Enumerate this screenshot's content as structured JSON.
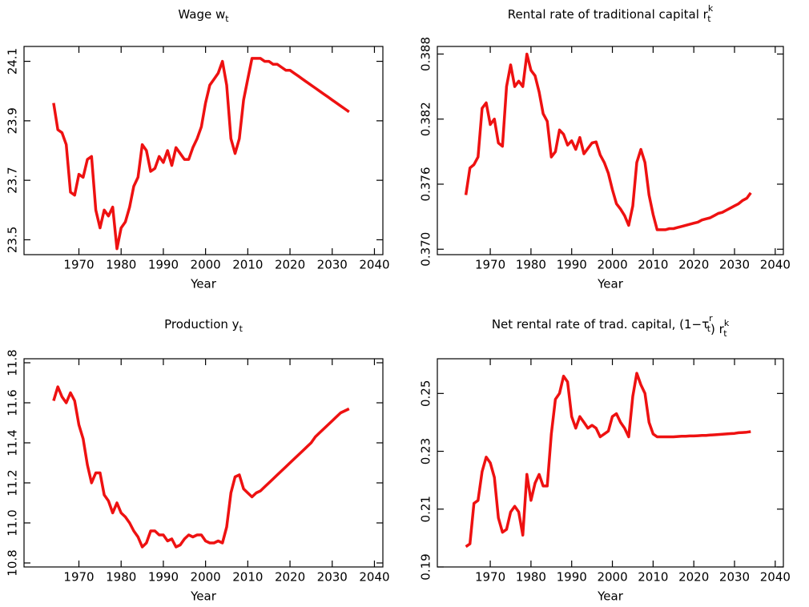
{
  "chart_data": [
    {
      "type": "line",
      "title": [
        {
          "text": "Wage w"
        },
        {
          "sub": "t"
        }
      ],
      "xlabel": "Year",
      "x": [
        1964,
        1965,
        1966,
        1967,
        1968,
        1969,
        1970,
        1971,
        1972,
        1973,
        1974,
        1975,
        1976,
        1977,
        1978,
        1979,
        1980,
        1981,
        1982,
        1983,
        1984,
        1985,
        1986,
        1987,
        1988,
        1989,
        1990,
        1991,
        1992,
        1993,
        1994,
        1995,
        1996,
        1997,
        1998,
        1999,
        2000,
        2001,
        2002,
        2003,
        2004,
        2005,
        2006,
        2007,
        2008,
        2009,
        2010,
        2011,
        2012,
        2013,
        2014,
        2015,
        2016,
        2017,
        2018,
        2019,
        2020,
        2021,
        2022,
        2023,
        2024,
        2025,
        2026,
        2027,
        2028,
        2029,
        2030,
        2031,
        2032,
        2033,
        2034
      ],
      "values": [
        23.96,
        23.87,
        23.86,
        23.82,
        23.66,
        23.65,
        23.72,
        23.71,
        23.77,
        23.78,
        23.6,
        23.54,
        23.6,
        23.58,
        23.61,
        23.47,
        23.54,
        23.56,
        23.61,
        23.68,
        23.71,
        23.82,
        23.8,
        23.73,
        23.74,
        23.78,
        23.76,
        23.8,
        23.75,
        23.81,
        23.79,
        23.77,
        23.77,
        23.81,
        23.84,
        23.88,
        23.96,
        24.02,
        24.04,
        24.06,
        24.1,
        24.02,
        23.84,
        23.79,
        23.84,
        23.97,
        24.04,
        24.11,
        24.11,
        24.11,
        24.1,
        24.1,
        24.09,
        24.09,
        24.08,
        24.07,
        24.07,
        24.06,
        24.05,
        24.04,
        24.03,
        24.02,
        24.01,
        24.0,
        23.99,
        23.98,
        23.97,
        23.96,
        23.95,
        23.94,
        23.93
      ],
      "color": "#ee1111",
      "xlim": [
        1957,
        2042
      ],
      "xticks": [
        1970,
        1980,
        1990,
        2000,
        2010,
        2020,
        2030,
        2040
      ],
      "ylim": [
        23.45,
        24.15
      ],
      "yticks": [
        23.5,
        23.7,
        23.9,
        24.1
      ]
    },
    {
      "type": "line",
      "title": [
        {
          "text": "Rental rate of traditional capital r"
        },
        {
          "sub": "t",
          "sup": "k"
        }
      ],
      "xlabel": "Year",
      "x": [
        1964,
        1965,
        1966,
        1967,
        1968,
        1969,
        1970,
        1971,
        1972,
        1973,
        1974,
        1975,
        1976,
        1977,
        1978,
        1979,
        1980,
        1981,
        1982,
        1983,
        1984,
        1985,
        1986,
        1987,
        1988,
        1989,
        1990,
        1991,
        1992,
        1993,
        1994,
        1995,
        1996,
        1997,
        1998,
        1999,
        2000,
        2001,
        2002,
        2003,
        2004,
        2005,
        2006,
        2007,
        2008,
        2009,
        2010,
        2011,
        2012,
        2013,
        2014,
        2015,
        2016,
        2017,
        2018,
        2019,
        2020,
        2021,
        2022,
        2023,
        2024,
        2025,
        2026,
        2027,
        2028,
        2029,
        2030,
        2031,
        2032,
        2033,
        2034
      ],
      "values": [
        0.375,
        0.3775,
        0.3778,
        0.3785,
        0.383,
        0.3835,
        0.3815,
        0.382,
        0.3798,
        0.3795,
        0.385,
        0.387,
        0.385,
        0.3855,
        0.385,
        0.388,
        0.3865,
        0.386,
        0.3845,
        0.3825,
        0.3818,
        0.3785,
        0.379,
        0.381,
        0.3806,
        0.3796,
        0.38,
        0.3792,
        0.3803,
        0.3788,
        0.3793,
        0.3798,
        0.3799,
        0.3787,
        0.378,
        0.377,
        0.3755,
        0.3742,
        0.3737,
        0.3731,
        0.3722,
        0.374,
        0.378,
        0.3792,
        0.378,
        0.375,
        0.3732,
        0.3718,
        0.3718,
        0.3718,
        0.3719,
        0.3719,
        0.372,
        0.3721,
        0.3722,
        0.3723,
        0.3724,
        0.3725,
        0.3727,
        0.3728,
        0.3729,
        0.3731,
        0.3733,
        0.3734,
        0.3736,
        0.3738,
        0.374,
        0.3742,
        0.3745,
        0.3747,
        0.3752
      ],
      "color": "#ee1111",
      "xlim": [
        1957,
        2042
      ],
      "xticks": [
        1970,
        1980,
        1990,
        2000,
        2010,
        2020,
        2030,
        2040
      ],
      "ylim": [
        0.3695,
        0.3887
      ],
      "yticks": [
        {
          "value": 0.37,
          "label": "0.370"
        },
        0.376,
        0.382,
        0.388
      ]
    },
    {
      "type": "line",
      "title": [
        {
          "text": "Production y"
        },
        {
          "sub": "t"
        }
      ],
      "xlabel": "Year",
      "x": [
        1964,
        1965,
        1966,
        1967,
        1968,
        1969,
        1970,
        1971,
        1972,
        1973,
        1974,
        1975,
        1976,
        1977,
        1978,
        1979,
        1980,
        1981,
        1982,
        1983,
        1984,
        1985,
        1986,
        1987,
        1988,
        1989,
        1990,
        1991,
        1992,
        1993,
        1994,
        1995,
        1996,
        1997,
        1998,
        1999,
        2000,
        2001,
        2002,
        2003,
        2004,
        2005,
        2006,
        2007,
        2008,
        2009,
        2010,
        2011,
        2012,
        2013,
        2014,
        2015,
        2016,
        2017,
        2018,
        2019,
        2020,
        2021,
        2022,
        2023,
        2024,
        2025,
        2026,
        2027,
        2028,
        2029,
        2030,
        2031,
        2032,
        2033,
        2034
      ],
      "values": [
        11.61,
        11.68,
        11.63,
        11.6,
        11.65,
        11.61,
        11.49,
        11.42,
        11.29,
        11.2,
        11.25,
        11.25,
        11.14,
        11.11,
        11.05,
        11.1,
        11.05,
        11.03,
        11.0,
        10.96,
        10.93,
        10.88,
        10.9,
        10.96,
        10.96,
        10.94,
        10.94,
        10.91,
        10.92,
        10.88,
        10.89,
        10.92,
        10.94,
        10.93,
        10.94,
        10.94,
        10.91,
        10.9,
        10.9,
        10.91,
        10.9,
        10.98,
        11.15,
        11.23,
        11.24,
        11.17,
        11.15,
        11.13,
        11.15,
        11.16,
        11.18,
        11.2,
        11.22,
        11.24,
        11.26,
        11.28,
        11.3,
        11.32,
        11.34,
        11.36,
        11.38,
        11.4,
        11.43,
        11.45,
        11.47,
        11.49,
        11.51,
        11.53,
        11.55,
        11.56,
        11.57
      ],
      "color": "#ee1111",
      "xlim": [
        1957,
        2042
      ],
      "xticks": [
        1970,
        1980,
        1990,
        2000,
        2010,
        2020,
        2030,
        2040
      ],
      "ylim": [
        10.78,
        11.82
      ],
      "yticks": [
        10.8,
        {
          "value": 11.0,
          "label": "11.0"
        },
        11.2,
        11.4,
        11.6,
        11.8
      ]
    },
    {
      "type": "line",
      "title": [
        {
          "text": "Net rental rate of trad. capital, (1−τ"
        },
        {
          "sub": "t",
          "sup": "r"
        },
        {
          "text": ") r"
        },
        {
          "sub": "t",
          "sup": "k"
        }
      ],
      "xlabel": "Year",
      "x": [
        1964,
        1965,
        1966,
        1967,
        1968,
        1969,
        1970,
        1971,
        1972,
        1973,
        1974,
        1975,
        1976,
        1977,
        1978,
        1979,
        1980,
        1981,
        1982,
        1983,
        1984,
        1985,
        1986,
        1987,
        1988,
        1989,
        1990,
        1991,
        1992,
        1993,
        1994,
        1995,
        1996,
        1997,
        1998,
        1999,
        2000,
        2001,
        2002,
        2003,
        2004,
        2005,
        2006,
        2007,
        2008,
        2009,
        2010,
        2011,
        2012,
        2013,
        2014,
        2015,
        2016,
        2017,
        2018,
        2019,
        2020,
        2021,
        2022,
        2023,
        2024,
        2025,
        2026,
        2027,
        2028,
        2029,
        2030,
        2031,
        2032,
        2033,
        2034
      ],
      "values": [
        0.197,
        0.198,
        0.212,
        0.213,
        0.223,
        0.228,
        0.226,
        0.221,
        0.207,
        0.202,
        0.203,
        0.209,
        0.211,
        0.209,
        0.201,
        0.222,
        0.213,
        0.219,
        0.222,
        0.218,
        0.218,
        0.236,
        0.248,
        0.25,
        0.256,
        0.254,
        0.242,
        0.238,
        0.242,
        0.24,
        0.238,
        0.239,
        0.238,
        0.235,
        0.236,
        0.237,
        0.242,
        0.243,
        0.24,
        0.238,
        0.235,
        0.249,
        0.257,
        0.253,
        0.25,
        0.24,
        0.236,
        0.235,
        0.235,
        0.235,
        0.235,
        0.235,
        0.2351,
        0.2352,
        0.2352,
        0.2353,
        0.2353,
        0.2354,
        0.2355,
        0.2355,
        0.2356,
        0.2357,
        0.2358,
        0.2359,
        0.236,
        0.2361,
        0.2362,
        0.2364,
        0.2365,
        0.2366,
        0.2368
      ],
      "color": "#ee1111",
      "xlim": [
        1957,
        2042
      ],
      "xticks": [
        1970,
        1980,
        1990,
        2000,
        2010,
        2020,
        2030,
        2040
      ],
      "ylim": [
        0.19,
        0.262
      ],
      "yticks": [
        0.19,
        0.21,
        0.23,
        0.25
      ]
    }
  ]
}
